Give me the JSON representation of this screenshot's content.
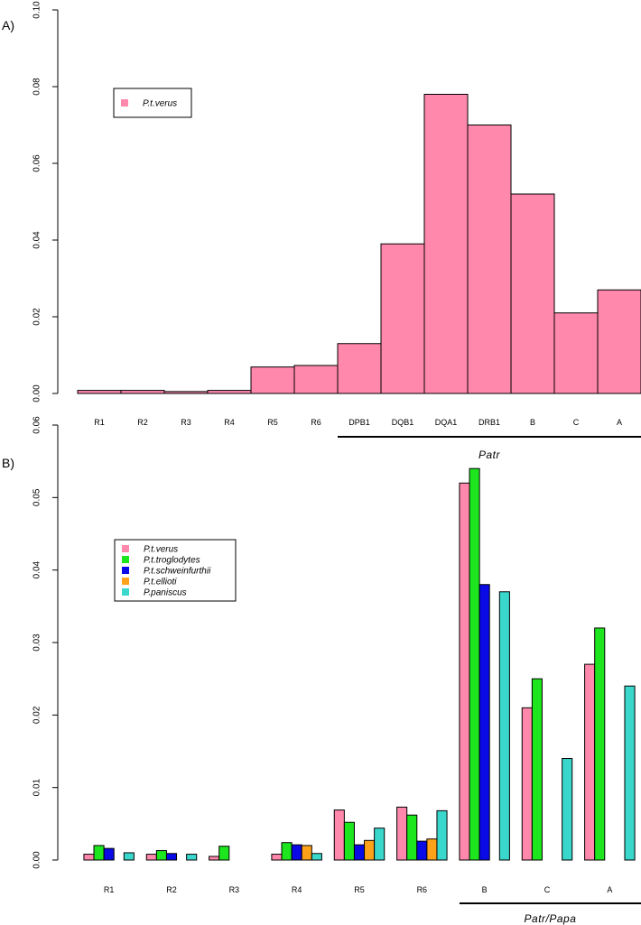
{
  "colors": {
    "verus": "#ff88ac",
    "troglodytes": "#1ee61e",
    "schweinfurthii": "#0a0ae6",
    "ellioti": "#ffa21a",
    "paniscus": "#3ad8cc"
  },
  "chart_data": [
    {
      "type": "bar",
      "panel_label": "A)",
      "title": "",
      "xlabel": "",
      "ylabel": "",
      "ylim": [
        0,
        0.1
      ],
      "y_ticks": [
        "0.00",
        "0.02",
        "0.04",
        "0.06",
        "0.08",
        "0.10"
      ],
      "categories": [
        "R1",
        "R2",
        "R3",
        "R4",
        "R5",
        "R6",
        "DPB1",
        "DQB1",
        "DQA1",
        "DRB1",
        "B",
        "C",
        "A"
      ],
      "series": [
        {
          "name": "P.t.verus",
          "color_key": "verus",
          "values": [
            0.0008,
            0.0008,
            0.0005,
            0.0008,
            0.0069,
            0.0073,
            0.013,
            0.039,
            0.078,
            0.07,
            0.052,
            0.021,
            0.027
          ]
        }
      ],
      "group_label": "Patr",
      "group_span": [
        "DPB1",
        "A"
      ],
      "legend_position": "top-left",
      "bar_width": 1.0
    },
    {
      "type": "bar",
      "panel_label": "B)",
      "title": "",
      "xlabel": "",
      "ylabel": "",
      "ylim": [
        0,
        0.06
      ],
      "y_ticks": [
        "0.00",
        "0.01",
        "0.02",
        "0.03",
        "0.04",
        "0.05",
        "0.06"
      ],
      "categories": [
        "R1",
        "R2",
        "R3",
        "R4",
        "R5",
        "R6",
        "B",
        "C",
        "A"
      ],
      "series": [
        {
          "name": "P.t.verus",
          "color_key": "verus",
          "values": [
            0.0008,
            0.0008,
            0.0005,
            0.0008,
            0.0069,
            0.0073,
            0.052,
            0.021,
            0.027
          ]
        },
        {
          "name": "P.t.troglodytes",
          "color_key": "troglodytes",
          "values": [
            0.002,
            0.0013,
            0.0019,
            0.0024,
            0.0052,
            0.0062,
            0.054,
            0.025,
            0.032
          ]
        },
        {
          "name": "P.t.schweinfurthii",
          "color_key": "schweinfurthii",
          "values": [
            0.0016,
            0.0009,
            0,
            0.0021,
            0.0021,
            0.0026,
            0.038,
            0,
            0
          ]
        },
        {
          "name": "P.t.ellioti",
          "color_key": "ellioti",
          "values": [
            0,
            0,
            0,
            0.002,
            0.0027,
            0.0029,
            0,
            0,
            0
          ]
        },
        {
          "name": "P.paniscus",
          "color_key": "paniscus",
          "values": [
            0.001,
            0.0008,
            0,
            0.0009,
            0.0044,
            0.0068,
            0.037,
            0.014,
            0.024
          ]
        }
      ],
      "group_label": "Patr/Papa",
      "group_span": [
        "B",
        "A"
      ],
      "legend_position": "top-left",
      "bar_width": 0.8
    }
  ]
}
